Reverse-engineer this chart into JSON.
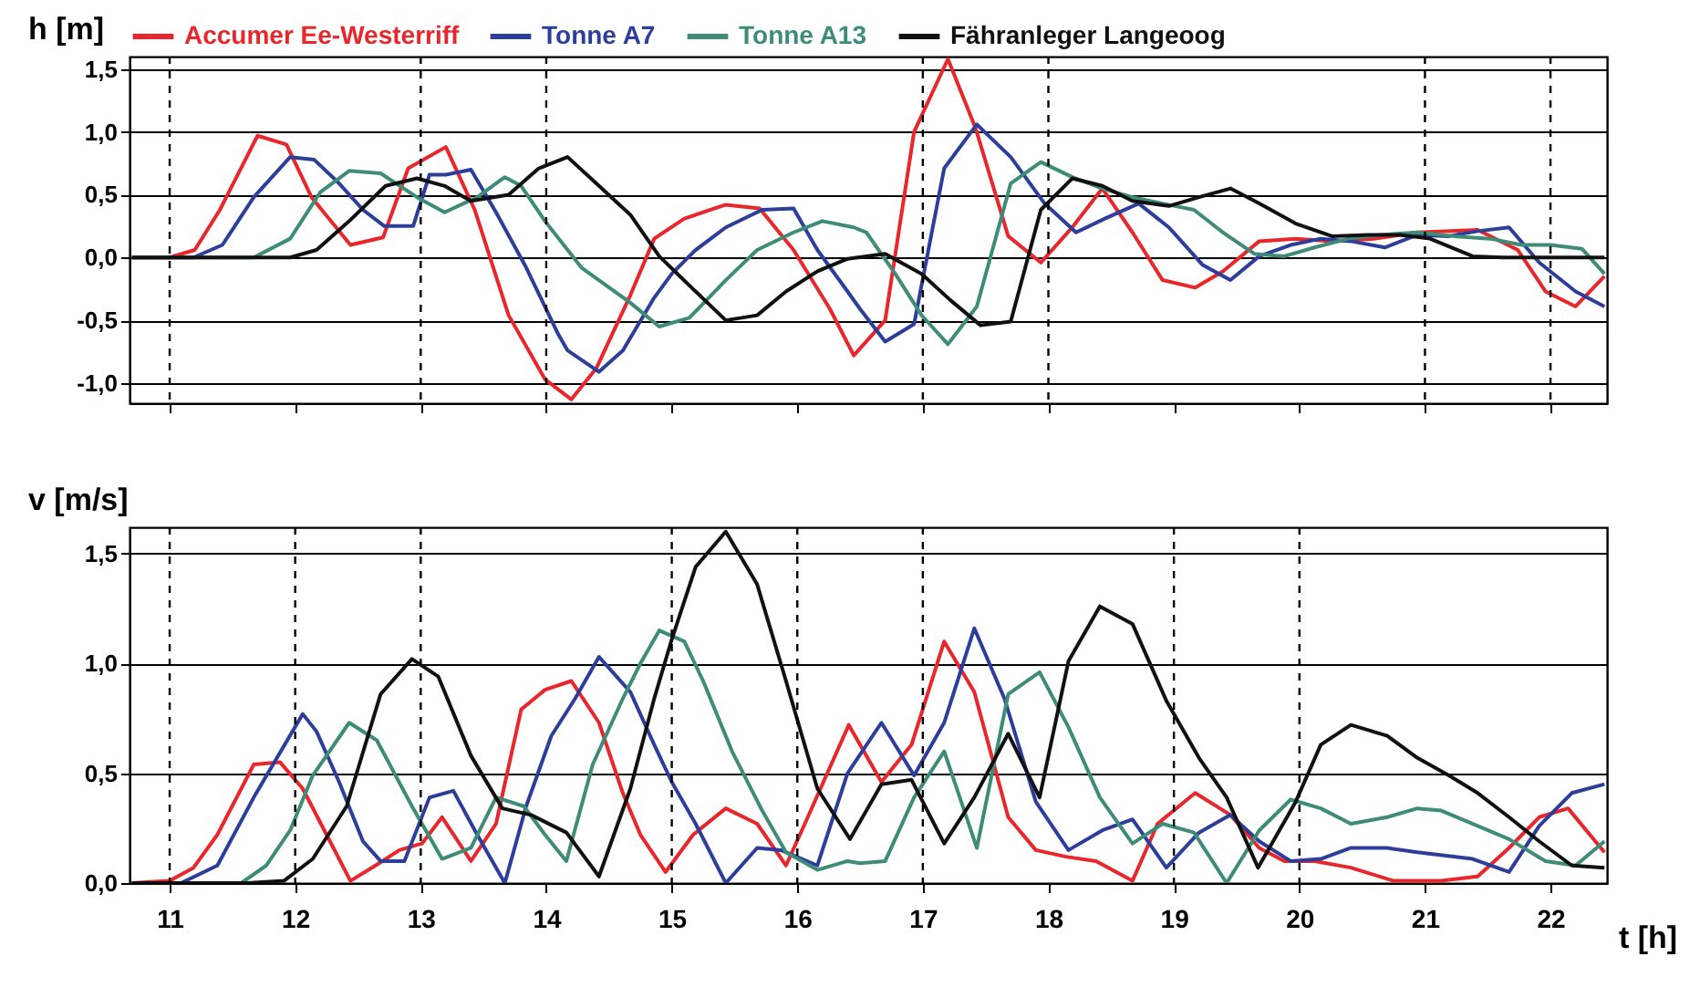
{
  "chart_data": [
    {
      "type": "line",
      "ylabel": "h [m]",
      "legend": "top",
      "grid": "y",
      "tick_labels": "y",
      "line_style": "solid",
      "xlim": [
        10.68,
        22.45
      ],
      "xticks": [
        11,
        12,
        13,
        14,
        15,
        16,
        17,
        18,
        19,
        20,
        21,
        22
      ],
      "ylim": [
        -1.16,
        1.6
      ],
      "yticks": [
        {
          "value": -1,
          "label": "-1,0"
        },
        {
          "value": -0.5,
          "label": "-0,5"
        },
        {
          "value": 0,
          "label": "0,0"
        },
        {
          "value": 0.5,
          "label": "0,5"
        },
        {
          "value": 1,
          "label": "1,0"
        },
        {
          "value": 1.5,
          "label": "1,5"
        }
      ],
      "ref_lines": [
        {
          "axis": "x",
          "value": 11,
          "line_style": "dashed"
        },
        {
          "axis": "x",
          "value": 13,
          "line_style": "dashed"
        },
        {
          "axis": "x",
          "value": 14,
          "line_style": "dashed"
        },
        {
          "axis": "x",
          "value": 17,
          "line_style": "dashed"
        },
        {
          "axis": "x",
          "value": 18,
          "line_style": "dashed"
        },
        {
          "axis": "x",
          "value": 21,
          "line_style": "dashed"
        },
        {
          "axis": "x",
          "value": 22,
          "line_style": "dashed"
        }
      ],
      "series": [
        {
          "name": "Accumer Ee-Westerriff",
          "color": "#e8262b",
          "x": [
            10.7,
            11.0,
            11.2,
            11.4,
            11.7,
            11.93,
            12.13,
            12.44,
            12.7,
            12.9,
            13.2,
            13.43,
            13.7,
            13.99,
            14.2,
            14.4,
            14.67,
            14.86,
            15.1,
            15.43,
            15.7,
            15.97,
            16.26,
            16.45,
            16.7,
            16.93,
            17.2,
            17.42,
            17.68,
            17.94,
            18.19,
            18.43,
            18.67,
            18.91,
            19.17,
            19.39,
            19.68,
            19.97,
            20.26,
            20.6,
            20.94,
            21.42,
            21.74,
            21.96,
            22.2,
            22.43
          ],
          "values": [
            0,
            0,
            0.06,
            0.38,
            0.97,
            0.9,
            0.48,
            0.1,
            0.16,
            0.71,
            0.88,
            0.38,
            -0.46,
            -0.97,
            -1.13,
            -0.88,
            -0.3,
            0.15,
            0.31,
            0.42,
            0.39,
            0.06,
            -0.41,
            -0.78,
            -0.5,
            1.0,
            1.58,
            1.03,
            0.17,
            -0.04,
            0.24,
            0.55,
            0.2,
            -0.18,
            -0.24,
            -0.11,
            0.13,
            0.15,
            0.13,
            0.15,
            0.2,
            0.22,
            0.06,
            -0.27,
            -0.39,
            -0.15
          ]
        },
        {
          "name": "Tonne A7",
          "color": "#2c3e9a",
          "x": [
            10.7,
            11.19,
            11.42,
            11.67,
            11.96,
            12.15,
            12.35,
            12.54,
            12.71,
            12.94,
            13.07,
            13.2,
            13.4,
            13.6,
            13.84,
            14.09,
            14.17,
            14.42,
            14.61,
            14.86,
            15.0,
            15.19,
            15.43,
            15.72,
            15.97,
            16.16,
            16.4,
            16.5,
            16.7,
            16.93,
            17.17,
            17.43,
            17.7,
            17.97,
            18.22,
            18.45,
            18.72,
            18.96,
            19.23,
            19.45,
            19.68,
            19.93,
            20.17,
            20.41,
            20.68,
            20.94,
            21.19,
            21.42,
            21.67,
            21.91,
            22.2,
            22.43
          ],
          "values": [
            0,
            0,
            0.1,
            0.48,
            0.8,
            0.78,
            0.59,
            0.38,
            0.25,
            0.25,
            0.66,
            0.66,
            0.7,
            0.36,
            -0.08,
            -0.6,
            -0.74,
            -0.91,
            -0.74,
            -0.32,
            -0.13,
            0.06,
            0.24,
            0.38,
            0.39,
            0.06,
            -0.27,
            -0.41,
            -0.67,
            -0.53,
            0.71,
            1.06,
            0.8,
            0.43,
            0.2,
            0.31,
            0.43,
            0.24,
            -0.06,
            -0.18,
            0.01,
            0.1,
            0.15,
            0.13,
            0.08,
            0.18,
            0.17,
            0.21,
            0.24,
            -0.04,
            -0.27,
            -0.39
          ]
        },
        {
          "name": "Tonne A13",
          "color": "#3e8c78",
          "x": [
            10.7,
            11.67,
            11.96,
            12.2,
            12.43,
            12.68,
            12.97,
            13.19,
            13.45,
            13.67,
            13.8,
            13.99,
            14.28,
            14.67,
            14.9,
            15.14,
            15.43,
            15.68,
            15.97,
            16.2,
            16.45,
            16.55,
            16.78,
            16.99,
            17.2,
            17.43,
            17.7,
            17.94,
            18.19,
            18.43,
            18.67,
            18.91,
            19.16,
            19.39,
            19.64,
            19.88,
            20.12,
            20.39,
            20.65,
            20.94,
            21.23,
            21.52,
            21.77,
            22.0,
            22.25,
            22.43
          ],
          "values": [
            0,
            0,
            0.15,
            0.52,
            0.69,
            0.67,
            0.48,
            0.36,
            0.48,
            0.64,
            0.57,
            0.29,
            -0.08,
            -0.36,
            -0.55,
            -0.48,
            -0.18,
            0.06,
            0.2,
            0.29,
            0.24,
            0.2,
            -0.13,
            -0.46,
            -0.69,
            -0.39,
            0.59,
            0.76,
            0.64,
            0.55,
            0.48,
            0.43,
            0.38,
            0.2,
            0.03,
            0.01,
            0.08,
            0.15,
            0.18,
            0.2,
            0.17,
            0.15,
            0.1,
            0.1,
            0.07,
            -0.13
          ]
        },
        {
          "name": "Fähranleger Langeoog",
          "color": "#111111",
          "x": [
            10.7,
            11.96,
            12.17,
            12.43,
            12.72,
            12.97,
            13.19,
            13.4,
            13.7,
            13.94,
            14.17,
            14.42,
            14.67,
            14.9,
            15.19,
            15.43,
            15.68,
            15.91,
            16.16,
            16.4,
            16.7,
            16.99,
            17.22,
            17.46,
            17.7,
            17.94,
            18.19,
            18.43,
            18.67,
            18.96,
            19.2,
            19.45,
            19.68,
            19.97,
            20.26,
            20.55,
            20.8,
            21.04,
            21.38,
            21.62,
            21.91,
            22.43
          ],
          "values": [
            0,
            0,
            0.06,
            0.29,
            0.57,
            0.63,
            0.57,
            0.45,
            0.5,
            0.71,
            0.8,
            0.57,
            0.34,
            0.01,
            -0.27,
            -0.5,
            -0.46,
            -0.27,
            -0.11,
            -0.01,
            0.03,
            -0.13,
            -0.34,
            -0.54,
            -0.51,
            0.38,
            0.63,
            0.57,
            0.45,
            0.41,
            0.48,
            0.55,
            0.43,
            0.27,
            0.17,
            0.18,
            0.18,
            0.15,
            0.01,
            0,
            0,
            0
          ]
        }
      ]
    },
    {
      "type": "line",
      "ylabel": "v [m/s]",
      "xlabel": "t [h]",
      "grid": "y",
      "line_style": "solid",
      "xlim": [
        10.68,
        22.45
      ],
      "xticks": [
        11,
        12,
        13,
        14,
        15,
        16,
        17,
        18,
        19,
        20,
        21,
        22
      ],
      "ylim": [
        0,
        1.62
      ],
      "yticks": [
        {
          "value": 0,
          "label": "0,0"
        },
        {
          "value": 0.5,
          "label": "0,5"
        },
        {
          "value": 1,
          "label": "1,0"
        },
        {
          "value": 1.5,
          "label": "1,5"
        }
      ],
      "ref_lines": [
        {
          "axis": "x",
          "value": 11,
          "line_style": "dashed"
        },
        {
          "axis": "x",
          "value": 12,
          "line_style": "dashed"
        },
        {
          "axis": "x",
          "value": 13,
          "line_style": "dashed"
        },
        {
          "axis": "x",
          "value": 15,
          "line_style": "dashed"
        },
        {
          "axis": "x",
          "value": 16,
          "line_style": "dashed"
        },
        {
          "axis": "x",
          "value": 17,
          "line_style": "dashed"
        },
        {
          "axis": "x",
          "value": 19,
          "line_style": "dashed"
        },
        {
          "axis": "x",
          "value": 20,
          "line_style": "dashed"
        }
      ],
      "series": [
        {
          "color": "#e8262b",
          "x": [
            10.7,
            11.0,
            11.19,
            11.38,
            11.67,
            11.88,
            12.06,
            12.25,
            12.44,
            12.64,
            12.83,
            13.01,
            13.17,
            13.4,
            13.6,
            13.8,
            13.99,
            14.2,
            14.42,
            14.61,
            14.75,
            14.95,
            15.17,
            15.43,
            15.68,
            15.91,
            16.06,
            16.41,
            16.67,
            16.91,
            17.17,
            17.41,
            17.68,
            17.9,
            18.14,
            18.38,
            18.67,
            18.87,
            19.17,
            19.45,
            19.68,
            19.88,
            20.12,
            20.41,
            20.75,
            21.13,
            21.42,
            21.67,
            21.91,
            22.14,
            22.43
          ],
          "values": [
            0,
            0.01,
            0.07,
            0.22,
            0.54,
            0.55,
            0.43,
            0.22,
            0.01,
            0.08,
            0.15,
            0.18,
            0.3,
            0.1,
            0.27,
            0.79,
            0.88,
            0.92,
            0.73,
            0.41,
            0.22,
            0.05,
            0.22,
            0.34,
            0.27,
            0.08,
            0.27,
            0.72,
            0.46,
            0.63,
            1.1,
            0.87,
            0.3,
            0.15,
            0.12,
            0.1,
            0.01,
            0.27,
            0.41,
            0.31,
            0.16,
            0.1,
            0.1,
            0.07,
            0.01,
            0.01,
            0.03,
            0.16,
            0.3,
            0.34,
            0.14
          ]
        },
        {
          "color": "#2c3e9a",
          "x": [
            10.7,
            11.09,
            11.38,
            11.67,
            12.06,
            12.17,
            12.35,
            12.54,
            12.68,
            12.87,
            13.07,
            13.26,
            13.45,
            13.67,
            13.84,
            14.04,
            14.23,
            14.42,
            14.67,
            14.86,
            15.0,
            15.19,
            15.43,
            15.68,
            15.87,
            16.16,
            16.4,
            16.67,
            16.93,
            17.17,
            17.41,
            17.65,
            17.9,
            18.16,
            18.43,
            18.67,
            18.94,
            19.2,
            19.45,
            19.68,
            19.93,
            20.17,
            20.41,
            20.7,
            20.94,
            21.38,
            21.67,
            21.91,
            22.17,
            22.43
          ],
          "values": [
            0,
            0,
            0.08,
            0.39,
            0.77,
            0.69,
            0.46,
            0.19,
            0.1,
            0.1,
            0.39,
            0.42,
            0.22,
            0,
            0.35,
            0.67,
            0.84,
            1.03,
            0.87,
            0.63,
            0.46,
            0.27,
            0,
            0.16,
            0.15,
            0.08,
            0.5,
            0.73,
            0.49,
            0.73,
            1.16,
            0.84,
            0.37,
            0.15,
            0.24,
            0.29,
            0.07,
            0.23,
            0.31,
            0.19,
            0.1,
            0.11,
            0.16,
            0.16,
            0.14,
            0.11,
            0.05,
            0.26,
            0.41,
            0.45
          ]
        },
        {
          "color": "#3e8c78",
          "x": [
            10.7,
            11.57,
            11.77,
            11.96,
            12.14,
            12.43,
            12.65,
            12.93,
            13.17,
            13.4,
            13.6,
            13.82,
            13.99,
            14.16,
            14.37,
            14.61,
            14.75,
            14.9,
            15.1,
            15.25,
            15.48,
            15.72,
            15.91,
            16.16,
            16.4,
            16.5,
            16.7,
            16.93,
            17.17,
            17.43,
            17.68,
            17.93,
            18.16,
            18.41,
            18.67,
            18.91,
            19.16,
            19.42,
            19.68,
            19.93,
            20.17,
            20.41,
            20.7,
            20.94,
            21.13,
            21.42,
            21.67,
            21.96,
            22.2,
            22.43
          ],
          "values": [
            0,
            0,
            0.08,
            0.24,
            0.49,
            0.73,
            0.65,
            0.35,
            0.11,
            0.16,
            0.39,
            0.35,
            0.22,
            0.1,
            0.54,
            0.84,
            1.0,
            1.15,
            1.1,
            0.92,
            0.6,
            0.33,
            0.14,
            0.06,
            0.1,
            0.09,
            0.1,
            0.39,
            0.6,
            0.16,
            0.86,
            0.96,
            0.71,
            0.39,
            0.18,
            0.27,
            0.23,
            0,
            0.24,
            0.38,
            0.34,
            0.27,
            0.3,
            0.34,
            0.33,
            0.26,
            0.2,
            0.1,
            0.08,
            0.19
          ]
        },
        {
          "color": "#111111",
          "x": [
            10.7,
            11.62,
            11.91,
            12.14,
            12.41,
            12.68,
            12.93,
            13.14,
            13.4,
            13.65,
            13.88,
            14.16,
            14.42,
            14.67,
            14.86,
            15.0,
            15.19,
            15.43,
            15.68,
            15.91,
            16.16,
            16.42,
            16.67,
            16.91,
            17.17,
            17.41,
            17.68,
            17.93,
            18.16,
            18.41,
            18.67,
            18.94,
            19.2,
            19.42,
            19.67,
            19.97,
            20.17,
            20.41,
            20.7,
            20.94,
            21.19,
            21.42,
            21.67,
            21.91,
            22.17,
            22.43
          ],
          "values": [
            0,
            0,
            0.01,
            0.11,
            0.35,
            0.86,
            1.02,
            0.94,
            0.58,
            0.34,
            0.31,
            0.23,
            0.03,
            0.43,
            0.84,
            1.11,
            1.44,
            1.6,
            1.36,
            0.92,
            0.43,
            0.2,
            0.45,
            0.47,
            0.18,
            0.39,
            0.68,
            0.39,
            1.01,
            1.26,
            1.18,
            0.83,
            0.57,
            0.39,
            0.07,
            0.37,
            0.63,
            0.72,
            0.67,
            0.57,
            0.49,
            0.41,
            0.3,
            0.19,
            0.08,
            0.07
          ]
        }
      ]
    }
  ]
}
